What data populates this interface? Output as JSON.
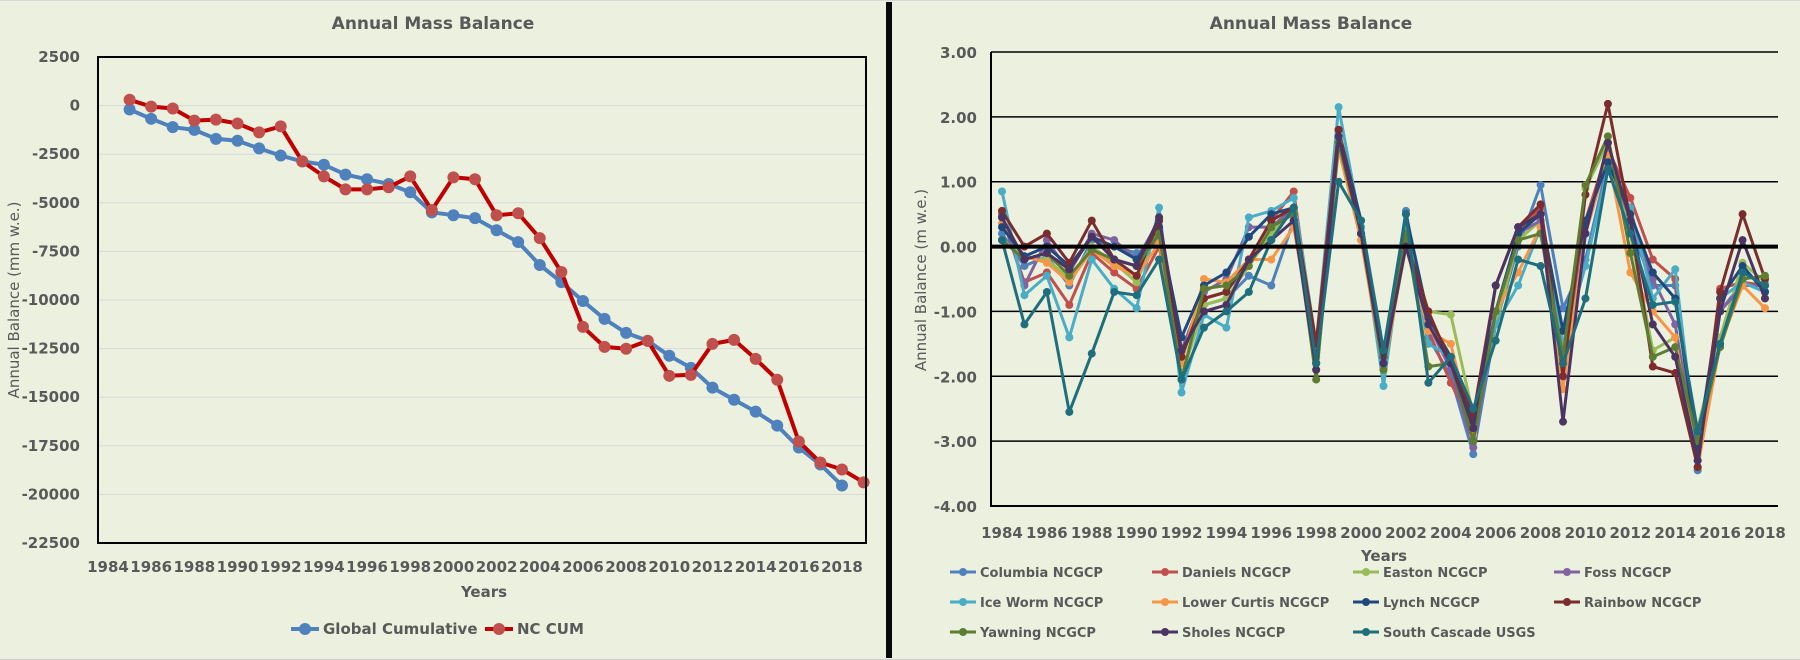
{
  "chart_data": [
    {
      "type": "line",
      "title": "Annual Mass Balance",
      "xlabel": "Years",
      "ylabel": "Annual Balance (mm w.e.)",
      "ylim": [
        -22500,
        2500
      ],
      "yticks": [
        2500,
        0,
        -2500,
        -5000,
        -7500,
        -10000,
        -12500,
        -15000,
        -17500,
        -20000,
        -22500
      ],
      "xlim": [
        1983.3,
        2019.9
      ],
      "xticks": [
        1984,
        1986,
        1988,
        1990,
        1992,
        1994,
        1996,
        1998,
        2000,
        2002,
        2004,
        2006,
        2008,
        2010,
        2012,
        2014,
        2016,
        2018
      ],
      "grid": true,
      "legend_position": "bottom",
      "series": [
        {
          "name": "Global Cumulative",
          "color": "#4f81bd",
          "x": [
            1985,
            1986,
            1987,
            1988,
            1989,
            1990,
            1991,
            1992,
            1993,
            1994,
            1995,
            1996,
            1997,
            1998,
            1999,
            2000,
            2001,
            2002,
            2003,
            2004,
            2005,
            2006,
            2007,
            2008,
            2009,
            2010,
            2011,
            2012,
            2013,
            2014,
            2015,
            2016,
            2017,
            2018
          ],
          "values": [
            -200,
            -680,
            -1110,
            -1250,
            -1710,
            -1810,
            -2200,
            -2570,
            -2870,
            -3040,
            -3550,
            -3790,
            -4030,
            -4460,
            -5490,
            -5640,
            -5790,
            -6410,
            -7020,
            -8200,
            -9080,
            -10050,
            -10970,
            -11690,
            -12100,
            -12870,
            -13490,
            -14510,
            -15130,
            -15740,
            -16460,
            -17590,
            -18460,
            -19540
          ]
        },
        {
          "name": "NC CUM",
          "color": "#c00000",
          "marker_color": "#c0504d",
          "x": [
            1985,
            1986,
            1987,
            1988,
            1989,
            1990,
            1991,
            1992,
            1993,
            1994,
            1995,
            1996,
            1997,
            1998,
            1999,
            2000,
            2001,
            2002,
            2003,
            2004,
            2005,
            2006,
            2007,
            2008,
            2009,
            2010,
            2011,
            2012,
            2013,
            2014,
            2015,
            2016,
            2017,
            2018,
            2019
          ],
          "values": [
            300,
            -50,
            -150,
            -770,
            -720,
            -920,
            -1380,
            -1070,
            -2870,
            -3640,
            -4310,
            -4310,
            -4200,
            -3640,
            -5380,
            -3690,
            -3790,
            -5640,
            -5540,
            -6820,
            -8560,
            -11380,
            -12410,
            -12510,
            -12100,
            -13900,
            -13850,
            -12260,
            -12050,
            -13030,
            -14100,
            -17280,
            -18360,
            -18720,
            -19380
          ]
        }
      ]
    },
    {
      "type": "line",
      "title": "Annual Mass Balance",
      "xlabel": "Years",
      "ylabel": "Annual Balance (m w.e.)",
      "ylim": [
        -4.0,
        3.0
      ],
      "yticks": [
        "3.00",
        "2.00",
        "1.00",
        "0.00",
        "-1.00",
        "-2.00",
        "-3.00",
        "-4.00"
      ],
      "xlim": [
        1983.5,
        2018.5
      ],
      "xticks": [
        1984,
        1986,
        1988,
        1990,
        1992,
        1994,
        1996,
        1998,
        2000,
        2002,
        2004,
        2006,
        2008,
        2010,
        2012,
        2014,
        2016,
        2018
      ],
      "grid": true,
      "legend_position": "bottom",
      "x": [
        1984,
        1985,
        1986,
        1987,
        1988,
        1989,
        1990,
        1991,
        1992,
        1993,
        1994,
        1995,
        1996,
        1997,
        1998,
        1999,
        2000,
        2001,
        2002,
        2003,
        2004,
        2005,
        2006,
        2007,
        2008,
        2009,
        2010,
        2011,
        2012,
        2013,
        2014,
        2015,
        2016,
        2017,
        2018
      ],
      "series": [
        {
          "name": "Columbia NCGCP",
          "color": "#4f81bd",
          "values": [
            0.2,
            -0.3,
            -0.15,
            -0.6,
            0.1,
            0.0,
            -0.1,
            0.1,
            -2.0,
            -0.9,
            -0.8,
            -0.45,
            -0.6,
            0.4,
            -1.8,
            1.6,
            0.3,
            -1.8,
            0.55,
            -1.4,
            -2.0,
            -3.2,
            -1.2,
            0.0,
            0.95,
            -0.95,
            -0.2,
            1.3,
            0.3,
            -0.6,
            -0.6,
            -3.45,
            -1.0,
            -0.55,
            -0.7
          ]
        },
        {
          "name": "Daniels NCGCP",
          "color": "#c0504d",
          "values": [
            0.45,
            -0.55,
            -0.4,
            -0.9,
            -0.1,
            -0.4,
            -0.65,
            0.0,
            -1.7,
            -0.8,
            -0.7,
            -0.2,
            0.4,
            0.85,
            -1.6,
            1.7,
            0.2,
            -1.8,
            0.1,
            -1.3,
            -2.1,
            -2.8,
            -1.1,
            0.2,
            0.6,
            -1.6,
            0.4,
            1.5,
            0.75,
            -0.2,
            -0.5,
            -3.4,
            -0.65,
            -0.55,
            -0.6
          ]
        },
        {
          "name": "Easton NCGCP",
          "color": "#9bbb59",
          "values": [
            0.1,
            -0.15,
            -0.2,
            -0.5,
            0.0,
            -0.25,
            -0.55,
            0.3,
            -2.0,
            -0.9,
            -0.8,
            -0.3,
            0.2,
            0.55,
            -1.9,
            1.6,
            0.1,
            -1.8,
            0.2,
            -1.0,
            -1.05,
            -2.6,
            -1.2,
            0.1,
            0.4,
            -1.6,
            0.9,
            1.6,
            0.2,
            -1.6,
            -1.4,
            -2.8,
            -1.4,
            -0.25,
            -0.55
          ]
        },
        {
          "name": "Foss NCGCP",
          "color": "#8064a2",
          "values": [
            0.5,
            -0.6,
            0.1,
            -0.4,
            0.2,
            0.1,
            -0.2,
            0.4,
            -1.6,
            -0.7,
            -0.5,
            0.3,
            0.3,
            0.6,
            -1.5,
            1.7,
            0.2,
            -1.7,
            0.1,
            -1.2,
            -1.9,
            -3.1,
            -1.0,
            0.2,
            0.4,
            -1.8,
            0.2,
            1.4,
            0.4,
            -0.5,
            -1.2,
            -3.3,
            -1.0,
            -0.6,
            -0.6
          ]
        },
        {
          "name": "Ice Worm NCGCP",
          "color": "#4bacc6",
          "values": [
            0.85,
            -0.75,
            -0.45,
            -1.4,
            -0.2,
            -0.65,
            -0.95,
            0.6,
            -2.25,
            -1.05,
            -1.25,
            0.45,
            0.55,
            0.75,
            -1.5,
            2.15,
            0.3,
            -2.15,
            0.3,
            -1.5,
            -1.7,
            -2.6,
            -1.2,
            -0.6,
            0.3,
            -1.5,
            -0.3,
            1.2,
            0.6,
            -0.8,
            -0.35,
            -3.3,
            -0.8,
            -0.55,
            -0.7
          ]
        },
        {
          "name": "Lower Curtis NCGCP",
          "color": "#f79646",
          "values": [
            0.35,
            -0.15,
            -0.25,
            -0.55,
            -0.05,
            -0.3,
            -0.45,
            0.05,
            -1.8,
            -0.5,
            -0.55,
            -0.2,
            -0.2,
            0.3,
            -1.7,
            1.5,
            0.1,
            -1.9,
            0.0,
            -1.3,
            -1.5,
            -2.9,
            -1.0,
            -0.4,
            0.3,
            -2.2,
            0.2,
            1.4,
            -0.4,
            -1.0,
            -1.4,
            -3.4,
            -1.5,
            -0.6,
            -0.95
          ]
        },
        {
          "name": "Lynch NCGCP",
          "color": "#1f497d",
          "values": [
            0.3,
            -0.15,
            0.0,
            -0.3,
            0.15,
            0.0,
            -0.2,
            0.3,
            -1.4,
            -0.6,
            -0.4,
            0.15,
            0.5,
            0.6,
            -1.8,
            1.8,
            0.4,
            -1.7,
            0.5,
            -1.1,
            -1.7,
            -2.7,
            -1.0,
            0.2,
            0.5,
            -1.3,
            0.4,
            1.3,
            0.5,
            -0.4,
            -0.8,
            -3.1,
            -0.8,
            -0.3,
            -0.7
          ]
        },
        {
          "name": "Rainbow NCGCP",
          "color": "#7b2c2c",
          "values": [
            0.55,
            0.0,
            0.2,
            -0.25,
            0.4,
            -0.2,
            -0.45,
            0.4,
            -1.7,
            -0.8,
            -0.7,
            -0.2,
            0.4,
            0.6,
            -1.5,
            1.8,
            0.2,
            -1.7,
            0.1,
            -1.0,
            -1.8,
            -2.6,
            -0.6,
            0.3,
            0.65,
            -2.0,
            0.8,
            2.2,
            0.4,
            -1.85,
            -1.95,
            -3.4,
            -0.7,
            0.5,
            -0.5
          ]
        },
        {
          "name": "Yawning NCGCP",
          "color": "#5e7c32",
          "values": [
            0.1,
            -0.2,
            -0.1,
            -0.45,
            -0.05,
            -0.2,
            -0.3,
            0.2,
            -2.05,
            -0.65,
            -0.6,
            -0.3,
            0.3,
            0.5,
            -2.05,
            1.6,
            0.2,
            -1.9,
            0.2,
            -1.85,
            -1.8,
            -3.0,
            -1.0,
            0.1,
            0.2,
            -1.7,
            0.95,
            1.7,
            -0.1,
            -1.7,
            -1.55,
            -3.0,
            -1.55,
            -0.5,
            -0.45
          ]
        },
        {
          "name": "Sholes NCGCP",
          "color": "#4b3462",
          "values": [
            0.45,
            -0.2,
            -0.1,
            -0.35,
            0.15,
            -0.2,
            -0.3,
            0.45,
            -1.6,
            -1.0,
            -0.9,
            -0.2,
            0.1,
            0.4,
            -1.9,
            1.7,
            0.2,
            -1.8,
            0.0,
            -1.2,
            -1.8,
            -2.8,
            -0.6,
            0.3,
            0.5,
            -2.7,
            0.2,
            1.6,
            0.4,
            -1.2,
            -1.7,
            -3.3,
            -1.0,
            0.1,
            -0.8
          ]
        },
        {
          "name": "South Cascade USGS",
          "color": "#1f6e7e",
          "values": [
            0.1,
            -1.2,
            -0.7,
            -2.55,
            -1.65,
            -0.7,
            -0.75,
            -0.2,
            -2.05,
            -1.25,
            -1.0,
            -0.7,
            0.1,
            0.6,
            -1.8,
            1.0,
            0.4,
            -1.6,
            0.5,
            -2.1,
            -1.7,
            -2.5,
            -1.45,
            -0.2,
            -0.3,
            -1.8,
            -0.8,
            1.2,
            0.2,
            -0.9,
            -0.85,
            -2.85,
            -1.5,
            -0.4,
            -0.6
          ]
        }
      ]
    }
  ]
}
